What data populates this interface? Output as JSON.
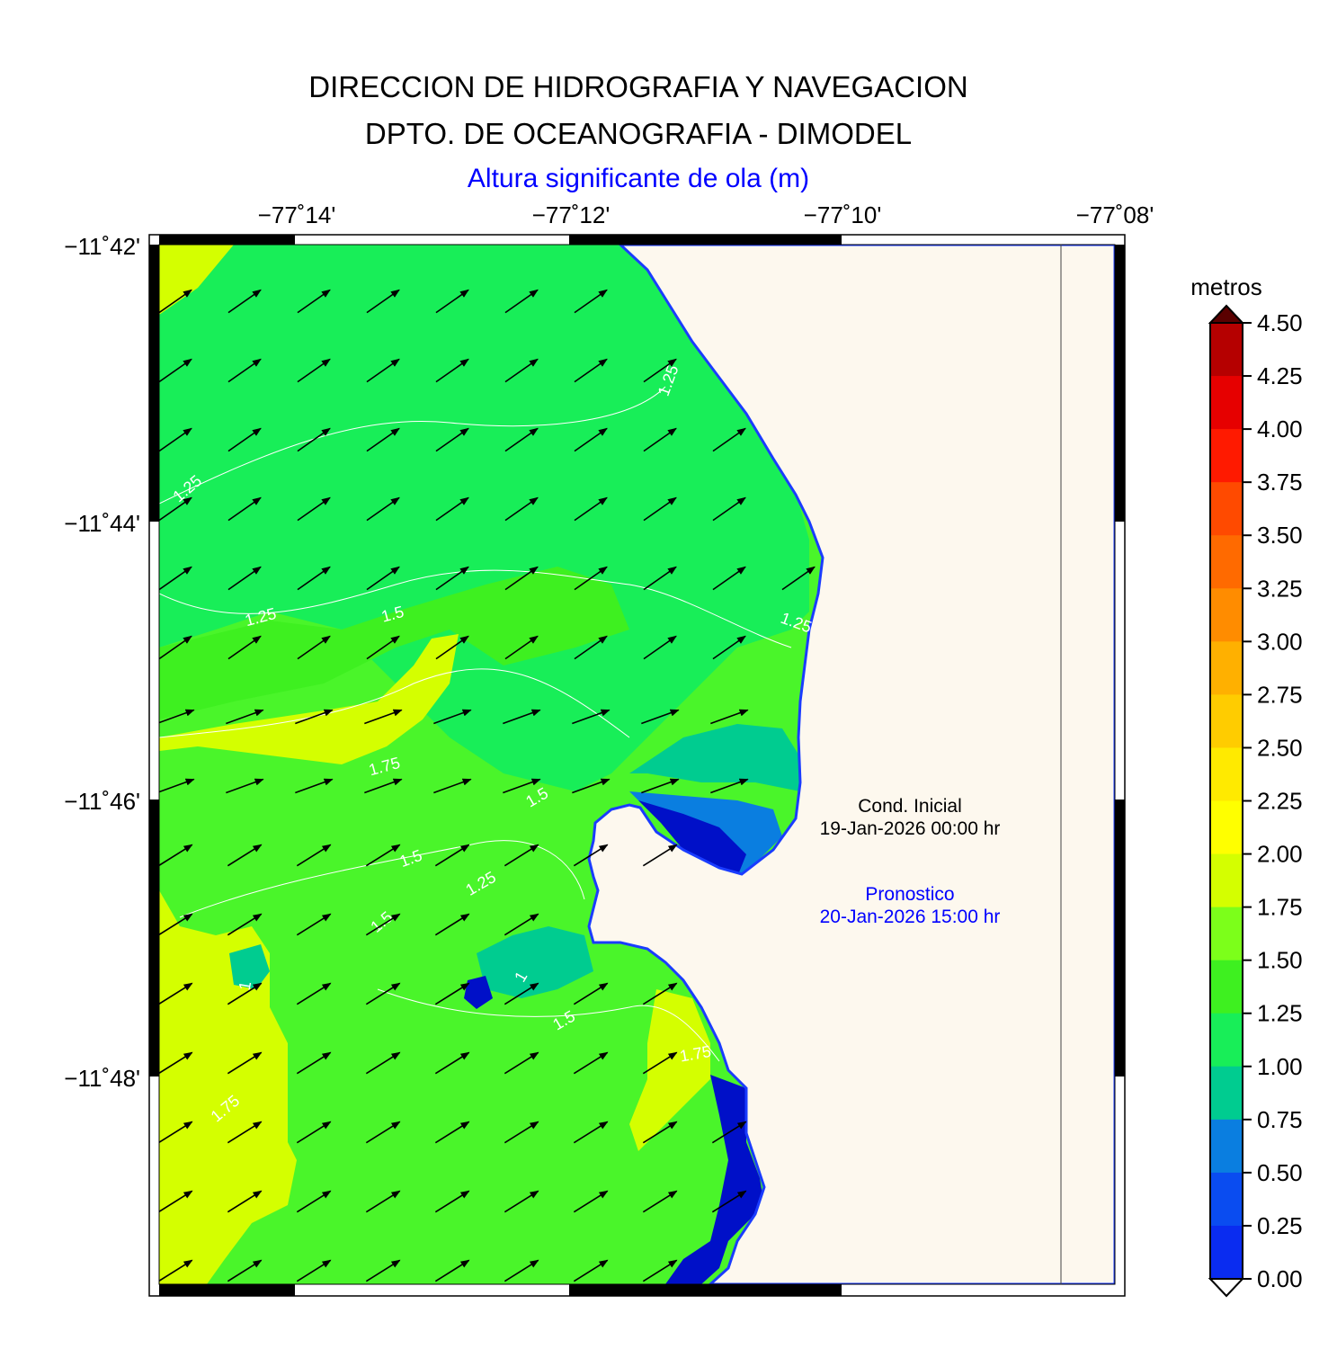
{
  "header": {
    "line1": "DIRECCION DE HIDROGRAFIA Y NAVEGACION",
    "line2": "DPTO. DE OCEANOGRAFIA - DIMODEL",
    "variable": "Altura significante de ola (m)"
  },
  "axes": {
    "lon_ticks": [
      "−77˚14'",
      "−77˚12'",
      "−77˚10'",
      "−77˚08'"
    ],
    "lat_ticks": [
      "−11˚42'",
      "−11˚44'",
      "−11˚46'",
      "−11˚48'"
    ]
  },
  "colorbar": {
    "unit": "metros",
    "labels": [
      "4.50",
      "4.25",
      "4.00",
      "3.75",
      "3.50",
      "3.25",
      "3.00",
      "2.75",
      "2.50",
      "2.25",
      "2.00",
      "1.75",
      "1.50",
      "1.25",
      "1.00",
      "0.75",
      "0.50",
      "0.25",
      "0.00"
    ],
    "colors": [
      "#b50000",
      "#e60000",
      "#ff1a00",
      "#ff4a00",
      "#ff6a00",
      "#ff8c00",
      "#ffb000",
      "#ffcc00",
      "#ffea00",
      "#ffff00",
      "#d4ff00",
      "#7cff1a",
      "#3ef020",
      "#18ee58",
      "#00cc90",
      "#0a7ee0",
      "#0a4cf0",
      "#0a2cf0",
      "#0010c8"
    ]
  },
  "contour_labels": [
    "1.25",
    "1.25",
    "1.25",
    "1.5",
    "1.75",
    "1.5",
    "1.5",
    "1.25",
    "1.5",
    "1",
    "1.5",
    "1.25",
    "1.75",
    "1.75",
    "1"
  ],
  "annotations": {
    "cond_title": "Cond. Inicial",
    "cond_date": "19-Jan-2026 00:00 hr",
    "fore_title": "Pronostico",
    "fore_date": "20-Jan-2026 15:00 hr"
  },
  "colors": {
    "land": "#fdf8ee",
    "sea_base": "#4af52a",
    "text_blue": "#0000ff"
  }
}
